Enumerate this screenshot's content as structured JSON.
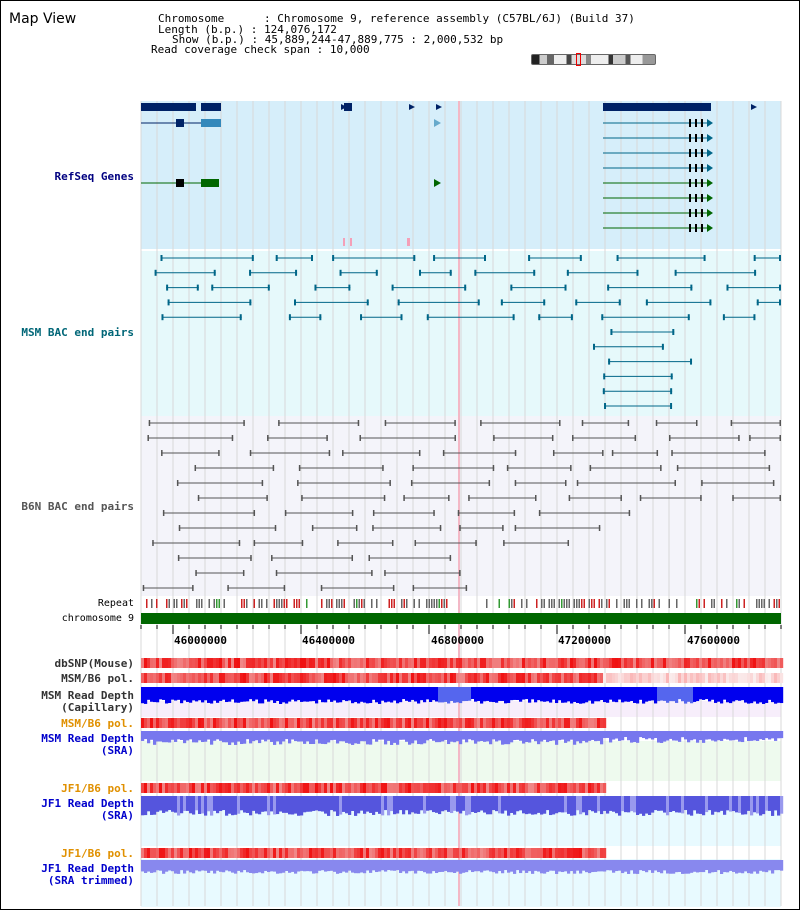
{
  "title": "Map View",
  "header": {
    "chromosome_label": "Chromosome",
    "chromosome_value": "Chromosome 9, reference assembly (C57BL/6J) (Build 37)",
    "length_label": "Length (b.p.)",
    "length_value": "124,076,172",
    "show_label": "Show (b.p.)",
    "show_value": "45,889,244-47,889,775 : 2,000,532 bp",
    "coverage_label": "Read coverage check span",
    "coverage_value": "10,000"
  },
  "tracks": {
    "refseq": {
      "label": "RefSeq Genes",
      "color": "#000080"
    },
    "msm_bac": {
      "label": "MSM BAC end pairs",
      "color": "#006666"
    },
    "b6n_bac": {
      "label": "B6N BAC end pairs",
      "color": "#444444"
    },
    "repeat": {
      "label": "Repeat"
    },
    "chromosome": {
      "label": "chromosome 9"
    },
    "dbsnp": {
      "label": "dbSNP(Mouse)"
    },
    "msm_b6_pol_1": {
      "label": "MSM/B6 pol."
    },
    "msm_cap_1": {
      "label": "MSM Read Depth"
    },
    "msm_cap_2": {
      "label": "(Capillary)"
    },
    "msm_b6_pol_2": {
      "label": "MSM/B6 pol."
    },
    "msm_sra_1": {
      "label": "MSM Read Depth"
    },
    "msm_sra_2": {
      "label": "(SRA)"
    },
    "jf1_b6_pol_1": {
      "label": "JF1/B6 pol."
    },
    "jf1_sra_1": {
      "label": "JF1 Read Depth"
    },
    "jf1_sra_2": {
      "label": "(SRA)"
    },
    "jf1_b6_pol_2": {
      "label": "JF1/B6 pol."
    },
    "jf1_trim_1": {
      "label": "JF1 Read Depth"
    },
    "jf1_trim_2": {
      "label": "(SRA trimmed)"
    }
  },
  "axis": {
    "ticks": [
      "46000000",
      "46400000",
      "46800000",
      "47200000",
      "47600000"
    ]
  },
  "colors": {
    "refseq_bg": "#d6eefa",
    "msm_bg": "#e6f9fb",
    "b6n_bg": "#f4f4fa",
    "depth_blue": "#0000ee",
    "depth_light": "#7777ee",
    "pol_red": "#ee3333",
    "chrom_green": "#006600"
  }
}
